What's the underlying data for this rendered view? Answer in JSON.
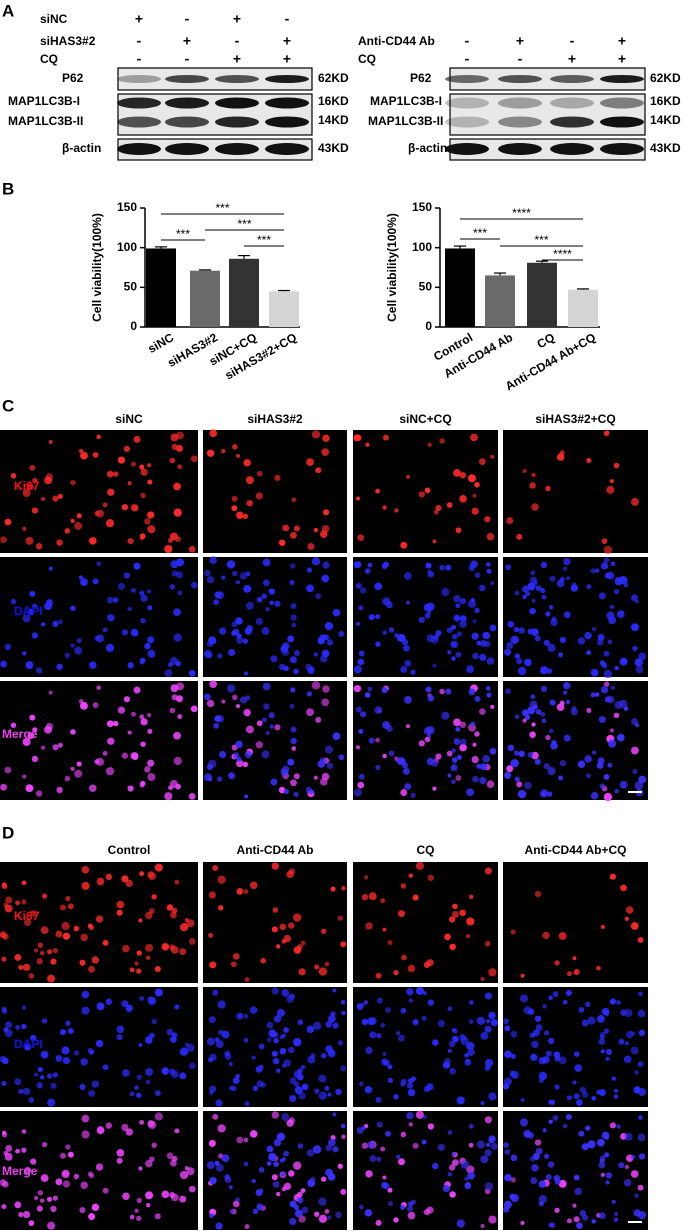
{
  "panel_a": {
    "label": "A",
    "left": {
      "conditions": [
        {
          "name": "siNC",
          "signs": [
            "+",
            "-",
            "+",
            "-"
          ]
        },
        {
          "name": "siHAS3#2",
          "signs": [
            "-",
            "+",
            "-",
            "+"
          ]
        },
        {
          "name": "CQ",
          "signs": [
            "-",
            "-",
            "+",
            "+"
          ]
        }
      ],
      "proteins": [
        "P62",
        "MAP1LC3B-I",
        "MAP1LC3B-II",
        "β-actin"
      ],
      "markers": [
        "62KD",
        "16KD",
        "14KD",
        "43KD"
      ]
    },
    "right": {
      "conditions": [
        {
          "name": "Anti-CD44 Ab",
          "signs": [
            "-",
            "+",
            "-",
            "+"
          ]
        },
        {
          "name": "CQ",
          "signs": [
            "-",
            "-",
            "+",
            "+"
          ]
        }
      ],
      "proteins": [
        "P62",
        "MAP1LC3B-I",
        "MAP1LC3B-II",
        "β-actin"
      ],
      "markers": [
        "62KD",
        "16KD",
        "14KD",
        "43KD"
      ]
    }
  },
  "panel_b": {
    "label": "B"
  },
  "chart_data": [
    {
      "type": "bar",
      "ylabel": "Cell viability(100%)",
      "categories": [
        "siNC",
        "siHAS3#2",
        "siNC+CQ",
        "siHAS3#2+CQ"
      ],
      "values": [
        99,
        71,
        86,
        45
      ],
      "errors": [
        2,
        1,
        4,
        1
      ],
      "colors": [
        "#000000",
        "#6a6a6a",
        "#333333",
        "#d4d4d4"
      ],
      "ylim": [
        0,
        150
      ],
      "yticks": [
        0,
        50,
        100,
        150
      ],
      "annotations": [
        "***",
        "***",
        "***",
        "***"
      ]
    },
    {
      "type": "bar",
      "ylabel": "Cell viability(100%)",
      "categories": [
        "Control",
        "Anti-CD44 Ab",
        "CQ",
        "Anti-CD44 Ab+CQ"
      ],
      "values": [
        99,
        65,
        81,
        47
      ],
      "errors": [
        3,
        3,
        2,
        1
      ],
      "colors": [
        "#000000",
        "#6a6a6a",
        "#333333",
        "#d4d4d4"
      ],
      "ylim": [
        0,
        150
      ],
      "yticks": [
        0,
        50,
        100,
        150
      ],
      "annotations": [
        "****",
        "***",
        "***",
        "****"
      ]
    }
  ],
  "panel_c": {
    "label": "C",
    "columns": [
      "siNC",
      "siHAS3#2",
      "siNC+CQ",
      "siHAS3#2+CQ"
    ],
    "rows": [
      "Ki67",
      "DAPI",
      "Merge"
    ]
  },
  "panel_d": {
    "label": "D",
    "columns": [
      "Control",
      "Anti-CD44 Ab",
      "CQ",
      "Anti-CD44 Ab+CQ"
    ],
    "rows": [
      "Ki67",
      "DAPI",
      "Merge"
    ]
  }
}
